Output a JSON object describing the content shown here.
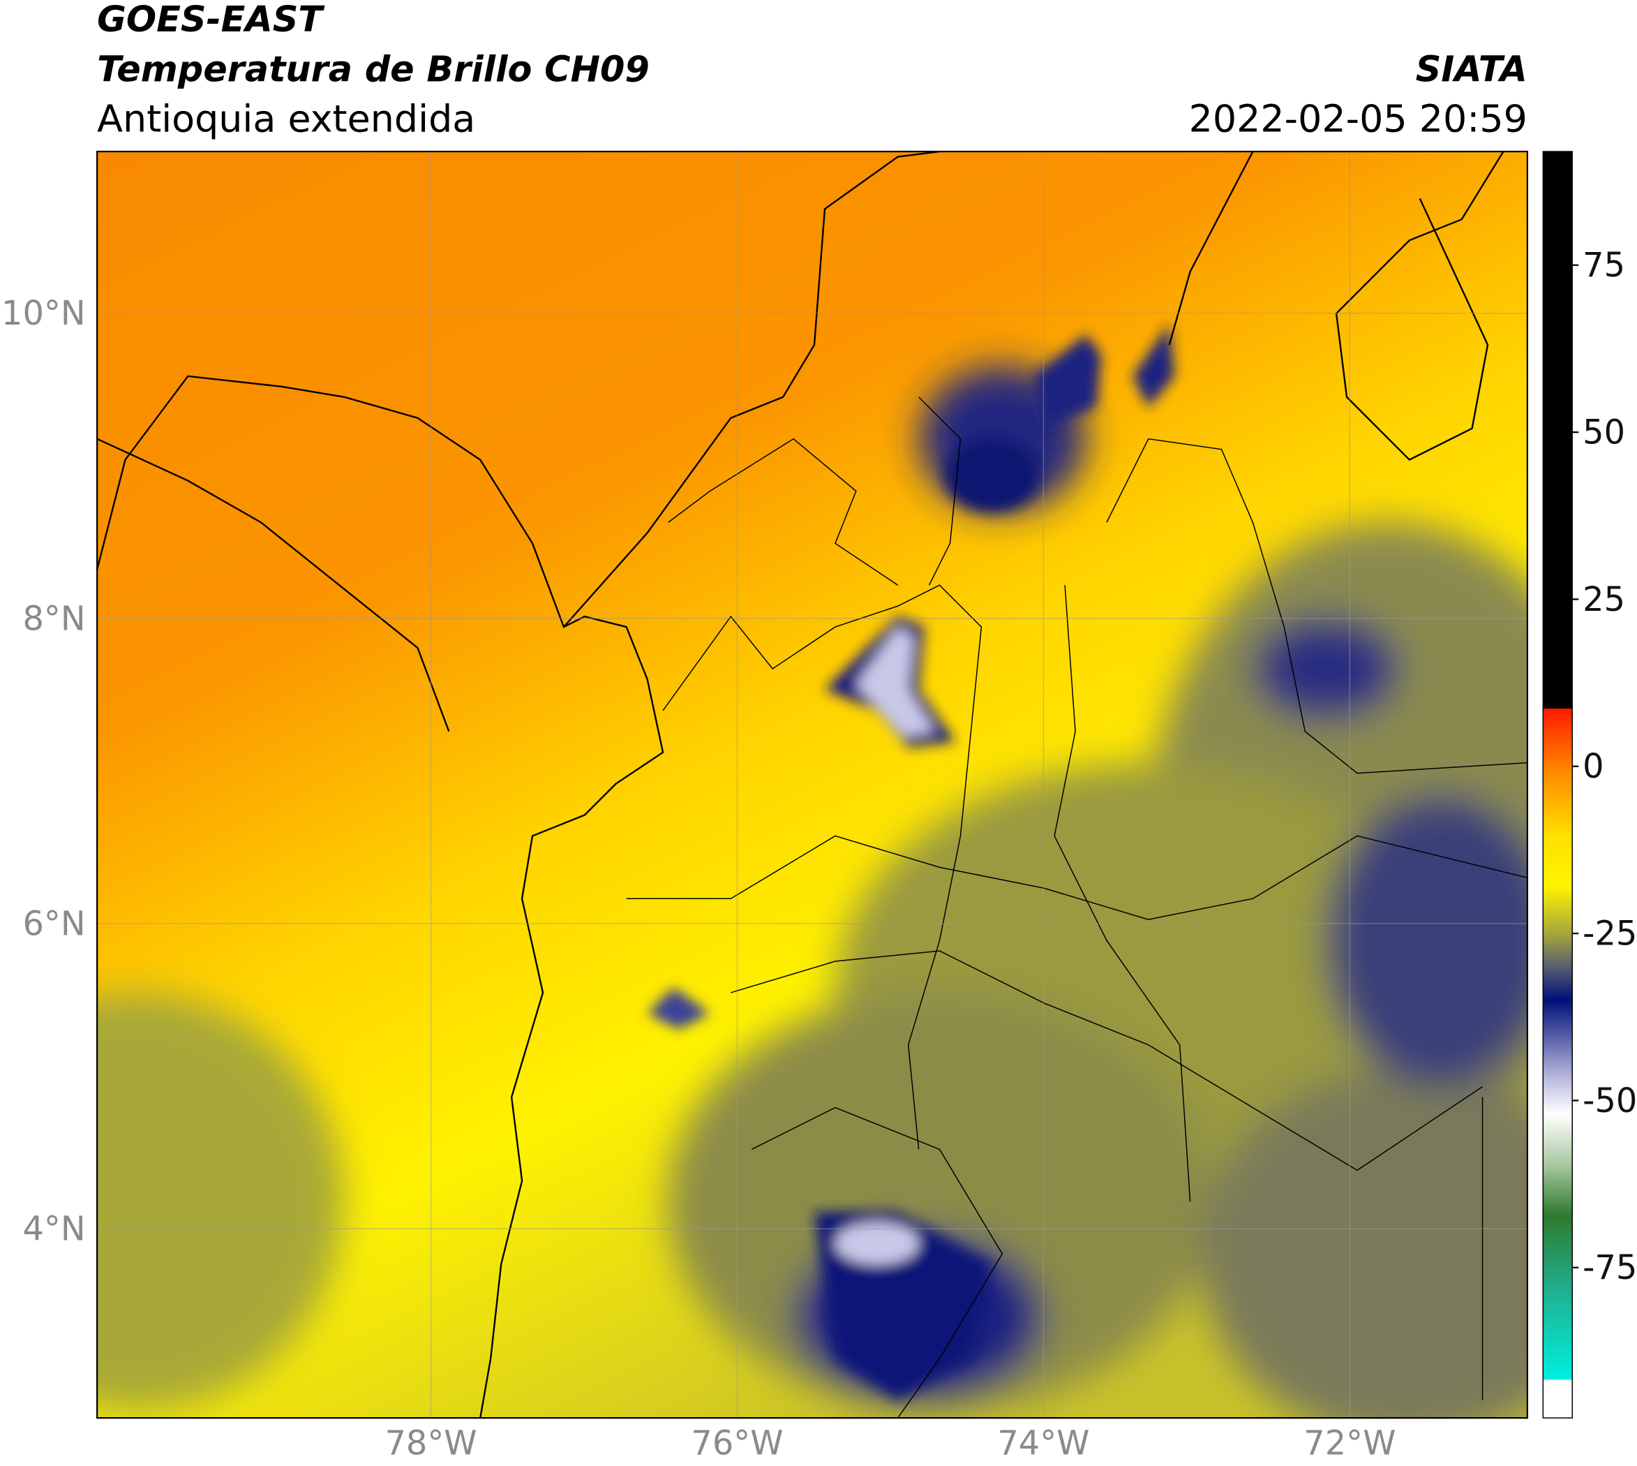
{
  "header": {
    "title": "GOES-EAST",
    "subtitle": "Temperatura de Brillo CH09",
    "region": "Antioquia extendida",
    "source": "SIATA",
    "timestamp": "2022-02-05 20:59"
  },
  "map": {
    "xlim": [
      -80.18,
      -70.84
    ],
    "ylim": [
      2.76,
      11.06
    ],
    "xticks": [
      {
        "value": -78,
        "label": "78°W"
      },
      {
        "value": -76,
        "label": "76°W"
      },
      {
        "value": -74,
        "label": "74°W"
      },
      {
        "value": -72,
        "label": "72°W"
      }
    ],
    "yticks": [
      {
        "value": 4,
        "label": "4°N"
      },
      {
        "value": 6,
        "label": "6°N"
      },
      {
        "value": 8,
        "label": "8°N"
      },
      {
        "value": 10,
        "label": "10°N"
      }
    ],
    "grid": true
  },
  "colorbar": {
    "lim": [
      -97.5,
      92
    ],
    "ticks": [
      75,
      50,
      25,
      0,
      -25,
      -50,
      -75
    ]
  }
}
